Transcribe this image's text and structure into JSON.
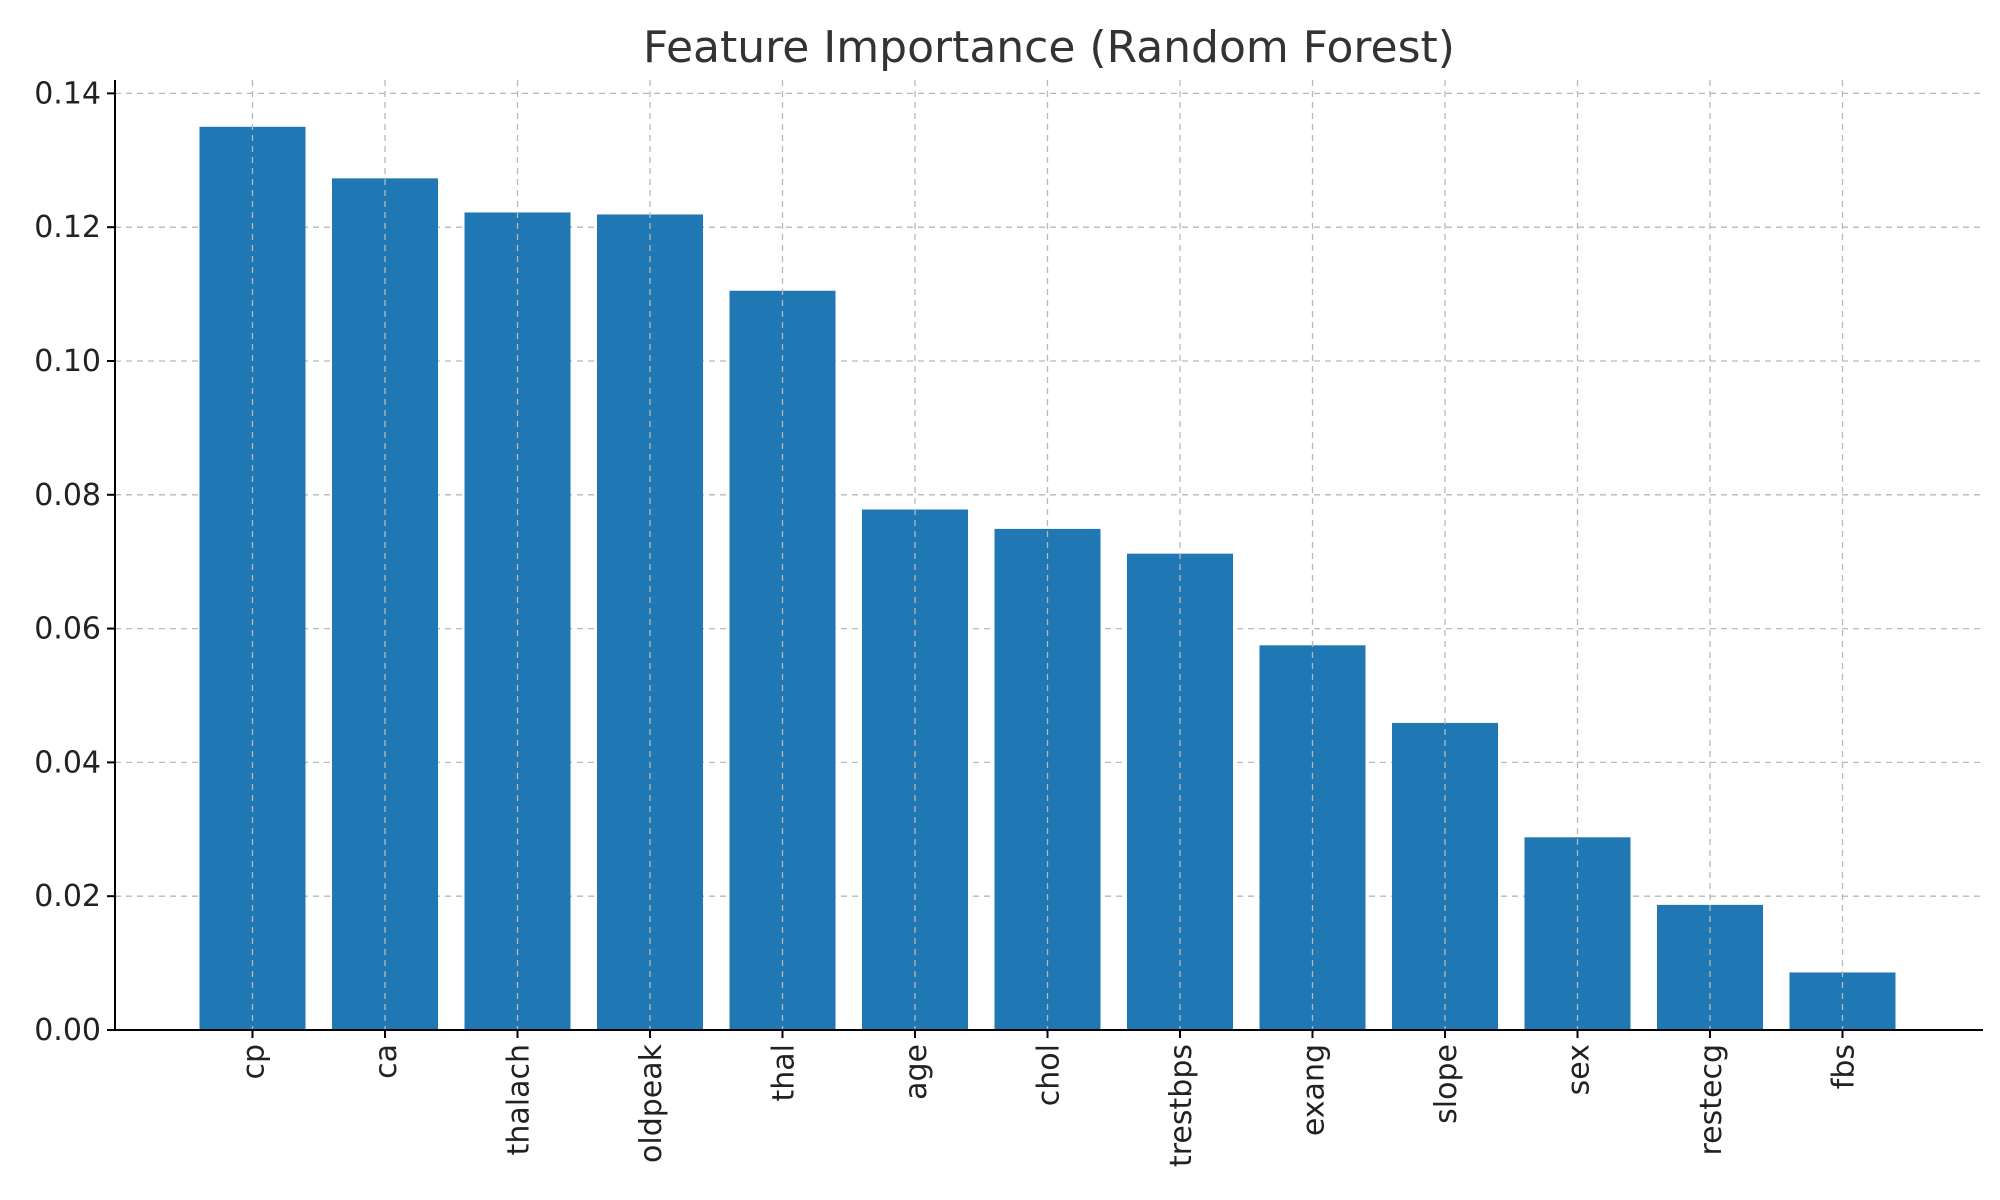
{
  "chart_data": {
    "type": "bar",
    "title": "Feature Importance (Random Forest)",
    "xlabel": "",
    "ylabel": "",
    "categories": [
      "cp",
      "ca",
      "thalach",
      "oldpeak",
      "thal",
      "age",
      "chol",
      "trestbps",
      "exang",
      "slope",
      "sex",
      "restecg",
      "fbs"
    ],
    "values": [
      0.135,
      0.1273,
      0.1222,
      0.1219,
      0.1105,
      0.0778,
      0.0749,
      0.0712,
      0.0575,
      0.0459,
      0.0288,
      0.0187,
      0.0086
    ],
    "ylim": [
      0,
      0.142
    ],
    "yticks": [
      0.0,
      0.02,
      0.04,
      0.06,
      0.08,
      0.1,
      0.12,
      0.14
    ],
    "ytick_labels": [
      "0.00",
      "0.02",
      "0.04",
      "0.06",
      "0.08",
      "0.10",
      "0.12",
      "0.14"
    ],
    "grid": true,
    "bar_color": "#1f77b4",
    "x_tick_rotation": "vertical"
  }
}
